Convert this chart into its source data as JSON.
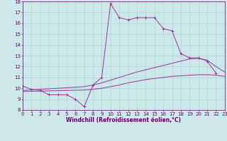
{
  "xlabel": "Windchill (Refroidissement éolien,°C)",
  "xlim": [
    0,
    23
  ],
  "ylim": [
    8,
    18
  ],
  "yticks": [
    8,
    9,
    10,
    11,
    12,
    13,
    14,
    15,
    16,
    17,
    18
  ],
  "xticks": [
    0,
    1,
    2,
    3,
    4,
    5,
    6,
    7,
    8,
    9,
    10,
    11,
    12,
    13,
    14,
    15,
    16,
    17,
    18,
    19,
    20,
    21,
    22,
    23
  ],
  "line1_x": [
    0,
    1,
    2,
    3,
    4,
    5,
    6,
    7,
    8,
    9,
    10,
    11,
    12,
    13,
    14,
    15,
    16,
    17,
    18,
    19,
    20,
    21,
    22
  ],
  "line1_y": [
    10.2,
    9.9,
    9.8,
    9.4,
    9.4,
    9.4,
    9.0,
    8.3,
    10.3,
    11.0,
    17.8,
    16.5,
    16.3,
    16.5,
    16.5,
    16.5,
    15.5,
    15.3,
    13.2,
    12.8,
    12.8,
    12.5,
    11.4
  ],
  "line2_x": [
    0,
    1,
    2,
    3,
    4,
    5,
    6,
    7,
    8,
    9,
    10,
    11,
    12,
    13,
    14,
    15,
    16,
    17,
    18,
    19,
    20,
    21,
    22,
    23
  ],
  "line2_y": [
    9.8,
    9.85,
    9.9,
    9.95,
    10.0,
    10.05,
    10.1,
    10.15,
    10.3,
    10.5,
    10.75,
    11.0,
    11.25,
    11.5,
    11.7,
    11.9,
    12.1,
    12.3,
    12.5,
    12.7,
    12.75,
    12.6,
    12.0,
    11.5
  ],
  "line3_x": [
    0,
    1,
    2,
    3,
    4,
    5,
    6,
    7,
    8,
    9,
    10,
    11,
    12,
    13,
    14,
    15,
    16,
    17,
    18,
    19,
    20,
    21,
    22,
    23
  ],
  "line3_y": [
    9.7,
    9.72,
    9.74,
    9.76,
    9.78,
    9.8,
    9.82,
    9.84,
    9.9,
    10.0,
    10.15,
    10.3,
    10.5,
    10.65,
    10.8,
    10.9,
    11.0,
    11.1,
    11.15,
    11.2,
    11.25,
    11.25,
    11.2,
    11.1
  ],
  "color": "#993399",
  "bg_color": "#cde8e8",
  "grid_color": "#b0d8d8",
  "tick_color": "#660066",
  "label_color": "#660066",
  "font_size": 5.0,
  "xlabel_fontsize": 5.5,
  "marker": "+"
}
